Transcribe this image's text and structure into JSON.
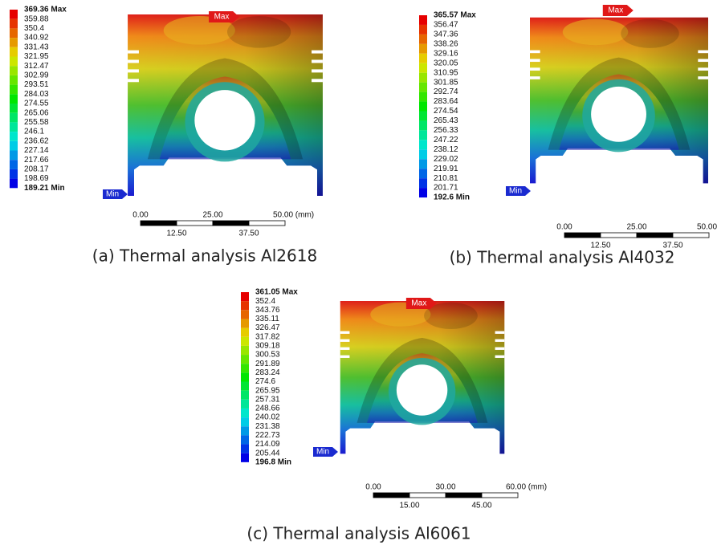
{
  "panels": [
    {
      "legend": [
        "369.36 Max",
        "359.88",
        "350.4",
        "340.92",
        "331.43",
        "321.95",
        "312.47",
        "302.99",
        "293.51",
        "284.03",
        "274.55",
        "265.06",
        "255.58",
        "246.1",
        "236.62",
        "227.14",
        "217.66",
        "208.17",
        "198.69",
        "189.21 Min"
      ],
      "max_tag": "Max",
      "min_tag": "Min",
      "scale_top": [
        "0.00",
        "25.00",
        "50.00 (mm)"
      ],
      "scale_bottom": [
        "12.50",
        "37.50"
      ],
      "caption": "(a) Thermal analysis Al2618"
    },
    {
      "legend": [
        "365.57 Max",
        "356.47",
        "347.36",
        "338.26",
        "329.16",
        "320.05",
        "310.95",
        "301.85",
        "292.74",
        "283.64",
        "274.54",
        "265.43",
        "256.33",
        "247.22",
        "238.12",
        "229.02",
        "219.91",
        "210.81",
        "201.71",
        "192.6 Min"
      ],
      "max_tag": "Max",
      "min_tag": "Min",
      "scale_top": [
        "0.00",
        "25.00",
        "50.00 (mm)"
      ],
      "scale_bottom": [
        "12.50",
        "37.50"
      ],
      "caption": "(b) Thermal analysis Al4032"
    },
    {
      "legend": [
        "361.05 Max",
        "352.4",
        "343.76",
        "335.11",
        "326.47",
        "317.82",
        "309.18",
        "300.53",
        "291.89",
        "283.24",
        "274.6",
        "265.95",
        "257.31",
        "248.66",
        "240.02",
        "231.38",
        "222.73",
        "214.09",
        "205.44",
        "196.8 Min"
      ],
      "max_tag": "Max",
      "min_tag": "Min",
      "scale_top": [
        "0.00",
        "30.00",
        "60.00 (mm)"
      ],
      "scale_bottom": [
        "15.00",
        "45.00"
      ],
      "caption": "(c) Thermal analysis Al6061"
    }
  ]
}
